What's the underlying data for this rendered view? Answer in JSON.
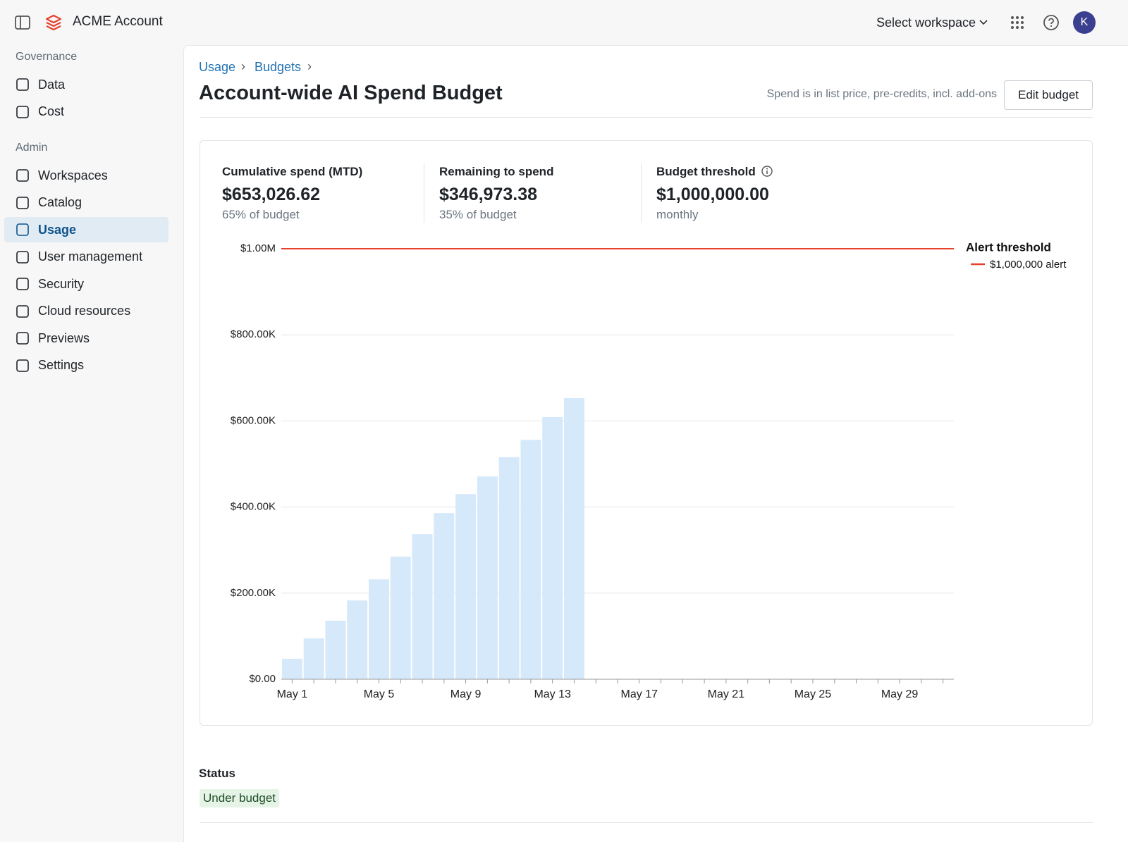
{
  "header": {
    "app_name": "ACME Account",
    "workspace_select": "Select workspace",
    "avatar": "K"
  },
  "sidebar": {
    "sections": [
      {
        "title": "Governance",
        "items": [
          "Data",
          "Cost"
        ]
      },
      {
        "title": "Admin",
        "items": [
          "Workspaces",
          "Catalog",
          "Usage",
          "User management",
          "Security",
          "Cloud resources",
          "Previews",
          "Settings"
        ]
      }
    ],
    "active": "Usage"
  },
  "breadcrumbs": [
    "Usage",
    "Budgets"
  ],
  "page": {
    "title": "Account-wide AI Spend Budget",
    "note": "Spend is in list price, pre-credits, incl. add-ons",
    "button": "Edit budget"
  },
  "stats": [
    {
      "label": "Cumulative spend (MTD)",
      "value": "$653,026.62",
      "sub": "65% of budget"
    },
    {
      "label": "Remaining to spend",
      "value": "$346,973.38",
      "sub": "35% of budget"
    },
    {
      "label": "Budget threshold",
      "value": "$1,000,000.00",
      "sub": "monthly"
    }
  ],
  "chart_data": {
    "type": "bar",
    "color": "#d6e9fa",
    "grid": true,
    "categories": [
      "May 1",
      null,
      null,
      null,
      "May 5",
      null,
      null,
      null,
      "May 9",
      null,
      null,
      null,
      "May 13",
      null,
      null,
      null,
      "May 17",
      null,
      null,
      null,
      "May 21",
      null,
      null,
      null,
      "May 25",
      null,
      null,
      null,
      "May 29",
      null,
      null
    ],
    "values": [
      47500,
      95000,
      136000,
      183000,
      232000,
      285000,
      337000,
      386000,
      430000,
      471000,
      516000,
      556000,
      609000,
      653026.62,
      null,
      null,
      null,
      null,
      null,
      null,
      null,
      null,
      null,
      null,
      null,
      null,
      null,
      null,
      null,
      null,
      null
    ],
    "ylim": [
      0,
      1000000
    ],
    "yticks": [
      {
        "value": 0,
        "label": "$0.00"
      },
      {
        "value": 200000,
        "label": "$200.00K"
      },
      {
        "value": 400000,
        "label": "$400.00K"
      },
      {
        "value": 600000,
        "label": "$600.00K"
      },
      {
        "value": 800000,
        "label": "$800.00K"
      },
      {
        "value": 1000000,
        "label": "$1.00M"
      }
    ],
    "threshold": {
      "value": 1000000,
      "color": "#e5412d"
    },
    "legend": {
      "title": "Alert threshold",
      "label": "$1,000,000 alert"
    }
  },
  "status": {
    "title": "Status",
    "badge": "Under budget"
  }
}
